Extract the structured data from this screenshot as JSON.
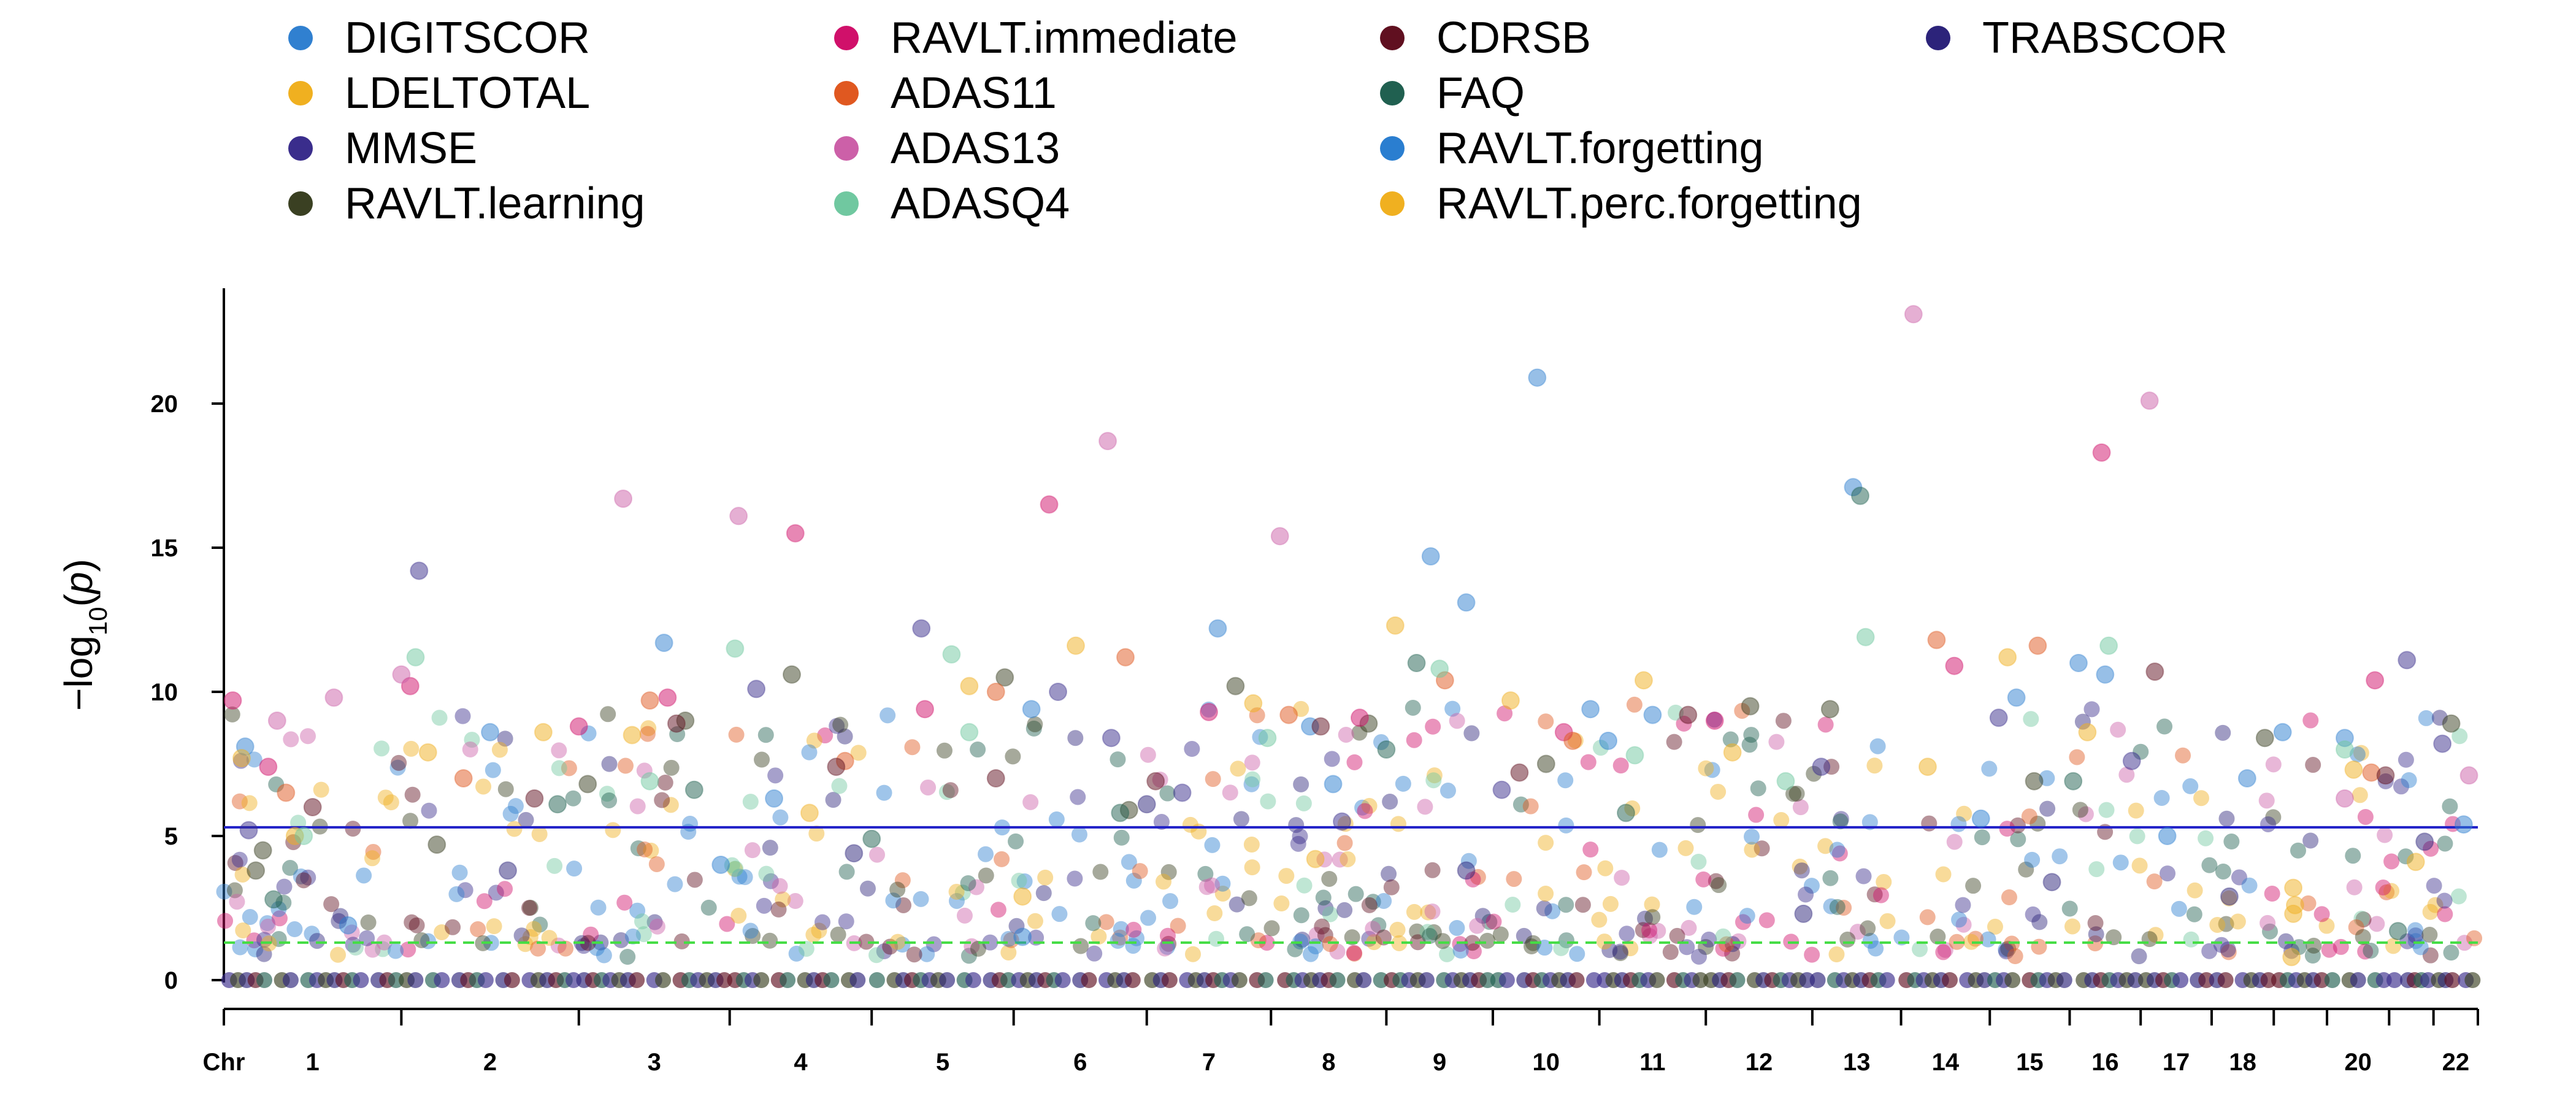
{
  "chart_data": {
    "type": "scatter",
    "subtype": "manhattan",
    "title": "",
    "xlabel": "Chr",
    "ylabel": "-log10(p)",
    "ylabel_parts": {
      "prefix": "−log",
      "subscript": "10",
      "arg": "p"
    },
    "ylim": [
      0,
      24
    ],
    "yticks": [
      0,
      5,
      10,
      15,
      20
    ],
    "grid": false,
    "legend_position": "top",
    "thresholds": [
      {
        "name": "genome-wide significance",
        "value": 5.3,
        "color": "#2020c8",
        "style": "solid"
      },
      {
        "name": "suggestive",
        "value": 1.3,
        "color": "#44dd44",
        "style": "dashed"
      }
    ],
    "chromosomes": [
      {
        "label": "1",
        "start": 0,
        "end": 100
      },
      {
        "label": "2",
        "start": 100,
        "end": 200
      },
      {
        "label": "3",
        "start": 200,
        "end": 285
      },
      {
        "label": "4",
        "start": 285,
        "end": 365
      },
      {
        "label": "5",
        "start": 365,
        "end": 445
      },
      {
        "label": "6",
        "start": 445,
        "end": 520
      },
      {
        "label": "7",
        "start": 520,
        "end": 590
      },
      {
        "label": "8",
        "start": 590,
        "end": 655
      },
      {
        "label": "9",
        "start": 655,
        "end": 715
      },
      {
        "label": "10",
        "start": 715,
        "end": 775
      },
      {
        "label": "11",
        "start": 775,
        "end": 835
      },
      {
        "label": "12",
        "start": 835,
        "end": 895
      },
      {
        "label": "13",
        "start": 895,
        "end": 945
      },
      {
        "label": "14",
        "start": 945,
        "end": 995
      },
      {
        "label": "15",
        "start": 995,
        "end": 1040
      },
      {
        "label": "16",
        "start": 1040,
        "end": 1080
      },
      {
        "label": "17",
        "start": 1080,
        "end": 1120
      },
      {
        "label": "18",
        "start": 1120,
        "end": 1155
      },
      {
        "label": "",
        "start": 1155,
        "end": 1185
      },
      {
        "label": "20",
        "start": 1185,
        "end": 1220
      },
      {
        "label": "",
        "start": 1220,
        "end": 1245
      },
      {
        "label": "22",
        "start": 1245,
        "end": 1270
      }
    ],
    "series": [
      {
        "name": "DIGITSCOR",
        "color": "#3080d0",
        "points": [
          {
            "x": 12,
            "y": 8.1
          },
          {
            "x": 150,
            "y": 8.6
          },
          {
            "x": 248,
            "y": 11.7
          },
          {
            "x": 310,
            "y": 6.3
          },
          {
            "x": 455,
            "y": 9.4
          },
          {
            "x": 560,
            "y": 12.2
          },
          {
            "x": 612,
            "y": 8.8
          },
          {
            "x": 680,
            "y": 14.7
          },
          {
            "x": 700,
            "y": 13.1
          },
          {
            "x": 740,
            "y": 20.9
          },
          {
            "x": 770,
            "y": 9.4
          },
          {
            "x": 805,
            "y": 9.2
          },
          {
            "x": 918,
            "y": 17.1
          },
          {
            "x": 1010,
            "y": 9.8
          },
          {
            "x": 1045,
            "y": 11.0
          },
          {
            "x": 1060,
            "y": 10.6
          },
          {
            "x": 1140,
            "y": 7.0
          },
          {
            "x": 1195,
            "y": 8.4
          },
          {
            "x": 1262,
            "y": 5.4
          }
        ]
      },
      {
        "name": "LDELTOTAL",
        "color": "#f0b020",
        "points": [
          {
            "x": 10,
            "y": 7.7
          },
          {
            "x": 40,
            "y": 5.0
          },
          {
            "x": 115,
            "y": 7.9
          },
          {
            "x": 180,
            "y": 8.6
          },
          {
            "x": 230,
            "y": 8.5
          },
          {
            "x": 330,
            "y": 5.8
          },
          {
            "x": 420,
            "y": 10.2
          },
          {
            "x": 480,
            "y": 11.6
          },
          {
            "x": 580,
            "y": 9.6
          },
          {
            "x": 660,
            "y": 12.3
          },
          {
            "x": 725,
            "y": 9.7
          },
          {
            "x": 800,
            "y": 10.4
          },
          {
            "x": 850,
            "y": 7.9
          },
          {
            "x": 960,
            "y": 7.4
          },
          {
            "x": 1005,
            "y": 11.2
          },
          {
            "x": 1050,
            "y": 8.6
          },
          {
            "x": 1200,
            "y": 7.3
          },
          {
            "x": 1235,
            "y": 4.1
          }
        ]
      },
      {
        "name": "MMSE",
        "color": "#3a2d8c",
        "points": [
          {
            "x": 14,
            "y": 5.2
          },
          {
            "x": 110,
            "y": 14.2
          },
          {
            "x": 300,
            "y": 10.1
          },
          {
            "x": 393,
            "y": 12.2
          },
          {
            "x": 470,
            "y": 10.0
          },
          {
            "x": 500,
            "y": 8.4
          },
          {
            "x": 540,
            "y": 6.5
          },
          {
            "x": 630,
            "y": 5.5
          },
          {
            "x": 720,
            "y": 6.6
          },
          {
            "x": 900,
            "y": 7.4
          },
          {
            "x": 1000,
            "y": 9.1
          },
          {
            "x": 1075,
            "y": 7.6
          },
          {
            "x": 1230,
            "y": 11.1
          },
          {
            "x": 1250,
            "y": 8.2
          }
        ]
      },
      {
        "name": "RAVLT.learning",
        "color": "#3a4022",
        "points": [
          {
            "x": 18,
            "y": 3.8
          },
          {
            "x": 22,
            "y": 4.5
          },
          {
            "x": 120,
            "y": 4.7
          },
          {
            "x": 205,
            "y": 6.8
          },
          {
            "x": 260,
            "y": 9.0
          },
          {
            "x": 320,
            "y": 10.6
          },
          {
            "x": 440,
            "y": 10.5
          },
          {
            "x": 510,
            "y": 5.9
          },
          {
            "x": 570,
            "y": 10.2
          },
          {
            "x": 645,
            "y": 8.9
          },
          {
            "x": 745,
            "y": 7.5
          },
          {
            "x": 860,
            "y": 9.5
          },
          {
            "x": 905,
            "y": 9.4
          },
          {
            "x": 1020,
            "y": 6.9
          },
          {
            "x": 1150,
            "y": 8.4
          },
          {
            "x": 1255,
            "y": 8.9
          }
        ]
      },
      {
        "name": "RAVLT.immediate",
        "color": "#d0106a",
        "points": [
          {
            "x": 5,
            "y": 9.7
          },
          {
            "x": 25,
            "y": 7.4
          },
          {
            "x": 105,
            "y": 10.2
          },
          {
            "x": 200,
            "y": 8.8
          },
          {
            "x": 250,
            "y": 9.8
          },
          {
            "x": 322,
            "y": 15.5
          },
          {
            "x": 395,
            "y": 9.4
          },
          {
            "x": 465,
            "y": 16.5
          },
          {
            "x": 555,
            "y": 9.3
          },
          {
            "x": 640,
            "y": 9.1
          },
          {
            "x": 755,
            "y": 8.6
          },
          {
            "x": 840,
            "y": 9.0
          },
          {
            "x": 975,
            "y": 10.9
          },
          {
            "x": 1058,
            "y": 18.3
          },
          {
            "x": 1212,
            "y": 10.4
          }
        ]
      },
      {
        "name": "ADAS11",
        "color": "#e05820",
        "points": [
          {
            "x": 35,
            "y": 6.5
          },
          {
            "x": 135,
            "y": 7.0
          },
          {
            "x": 240,
            "y": 9.7
          },
          {
            "x": 350,
            "y": 7.6
          },
          {
            "x": 435,
            "y": 10.0
          },
          {
            "x": 508,
            "y": 11.2
          },
          {
            "x": 600,
            "y": 9.2
          },
          {
            "x": 688,
            "y": 10.4
          },
          {
            "x": 760,
            "y": 8.3
          },
          {
            "x": 965,
            "y": 11.8
          },
          {
            "x": 1022,
            "y": 11.6
          },
          {
            "x": 1210,
            "y": 7.2
          }
        ]
      },
      {
        "name": "ADAS13",
        "color": "#cc60a8",
        "points": [
          {
            "x": 30,
            "y": 9.0
          },
          {
            "x": 62,
            "y": 9.8
          },
          {
            "x": 100,
            "y": 10.6
          },
          {
            "x": 225,
            "y": 16.7
          },
          {
            "x": 290,
            "y": 16.1
          },
          {
            "x": 498,
            "y": 18.7
          },
          {
            "x": 595,
            "y": 15.4
          },
          {
            "x": 952,
            "y": 23.1
          },
          {
            "x": 1085,
            "y": 20.1
          },
          {
            "x": 1195,
            "y": 6.3
          },
          {
            "x": 1265,
            "y": 7.1
          }
        ]
      },
      {
        "name": "ADASQ4",
        "color": "#70c8a0",
        "points": [
          {
            "x": 45,
            "y": 5.0
          },
          {
            "x": 108,
            "y": 11.2
          },
          {
            "x": 240,
            "y": 6.9
          },
          {
            "x": 288,
            "y": 11.5
          },
          {
            "x": 410,
            "y": 11.3
          },
          {
            "x": 420,
            "y": 8.6
          },
          {
            "x": 588,
            "y": 8.4
          },
          {
            "x": 685,
            "y": 10.8
          },
          {
            "x": 795,
            "y": 7.8
          },
          {
            "x": 880,
            "y": 6.9
          },
          {
            "x": 925,
            "y": 11.9
          },
          {
            "x": 1062,
            "y": 11.6
          },
          {
            "x": 1195,
            "y": 8.0
          }
        ]
      },
      {
        "name": "CDRSB",
        "color": "#601020",
        "points": [
          {
            "x": 50,
            "y": 6.0
          },
          {
            "x": 175,
            "y": 6.3
          },
          {
            "x": 255,
            "y": 8.9
          },
          {
            "x": 345,
            "y": 7.4
          },
          {
            "x": 435,
            "y": 7.0
          },
          {
            "x": 525,
            "y": 6.9
          },
          {
            "x": 618,
            "y": 8.8
          },
          {
            "x": 730,
            "y": 7.2
          },
          {
            "x": 825,
            "y": 9.2
          },
          {
            "x": 1088,
            "y": 10.7
          },
          {
            "x": 1218,
            "y": 7.1
          }
        ]
      },
      {
        "name": "FAQ",
        "color": "#206050",
        "points": [
          {
            "x": 28,
            "y": 2.8
          },
          {
            "x": 188,
            "y": 6.1
          },
          {
            "x": 265,
            "y": 6.6
          },
          {
            "x": 365,
            "y": 4.9
          },
          {
            "x": 505,
            "y": 5.8
          },
          {
            "x": 655,
            "y": 8.0
          },
          {
            "x": 672,
            "y": 11.0
          },
          {
            "x": 790,
            "y": 5.8
          },
          {
            "x": 922,
            "y": 16.8
          },
          {
            "x": 1042,
            "y": 6.9
          },
          {
            "x": 1225,
            "y": 1.7
          }
        ]
      },
      {
        "name": "RAVLT.forgetting",
        "color": "#2a7ed0",
        "points": [
          {
            "x": 70,
            "y": 1.9
          },
          {
            "x": 280,
            "y": 4.0
          },
          {
            "x": 450,
            "y": 1.5
          },
          {
            "x": 625,
            "y": 6.8
          },
          {
            "x": 780,
            "y": 8.3
          },
          {
            "x": 990,
            "y": 5.6
          },
          {
            "x": 1095,
            "y": 5.0
          },
          {
            "x": 1160,
            "y": 8.6
          }
        ]
      },
      {
        "name": "RAVLT.perc.forgetting",
        "color": "#f0b020",
        "points": [
          {
            "x": 1165,
            "y": 0.8
          },
          {
            "x": 1166,
            "y": 2.3
          },
          {
            "x": 1166,
            "y": 3.2
          },
          {
            "x": 1167,
            "y": 2.6
          },
          {
            "x": 450,
            "y": 2.9
          },
          {
            "x": 615,
            "y": 4.2
          }
        ]
      },
      {
        "name": "TRABSCOR",
        "color": "#2c237a",
        "points": [
          {
            "x": 160,
            "y": 3.8
          },
          {
            "x": 355,
            "y": 4.4
          },
          {
            "x": 520,
            "y": 6.1
          },
          {
            "x": 700,
            "y": 3.8
          },
          {
            "x": 890,
            "y": 2.3
          },
          {
            "x": 1030,
            "y": 3.4
          },
          {
            "x": 1130,
            "y": 2.9
          },
          {
            "x": 1240,
            "y": 4.8
          }
        ]
      }
    ]
  }
}
